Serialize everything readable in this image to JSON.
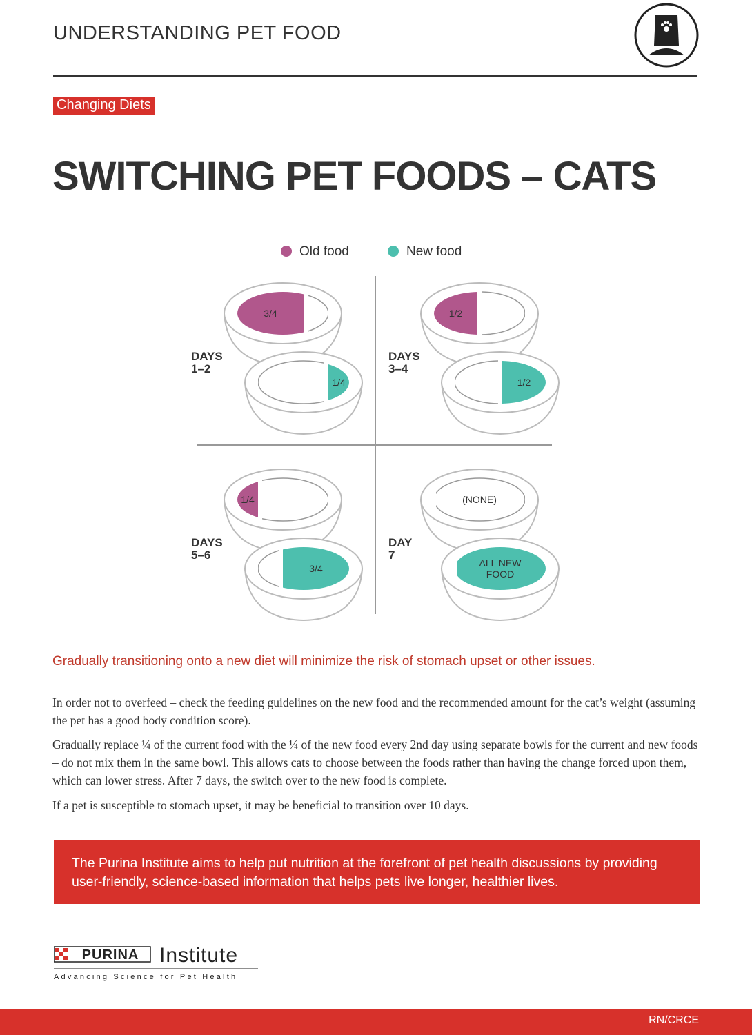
{
  "header": {
    "title": "UNDERSTANDING PET FOOD"
  },
  "tag": "Changing Diets",
  "title": "SWITCHING PET FOODS – CATS",
  "legend": [
    {
      "label": "Old food",
      "color": "#b1578c"
    },
    {
      "label": "New food",
      "color": "#4dbfae"
    }
  ],
  "panels": [
    {
      "label": "DAYS",
      "range": "1–2",
      "old": "3/4",
      "new": "1/4"
    },
    {
      "label": "DAYS",
      "range": "3–4",
      "old": "1/2",
      "new": "1/2"
    },
    {
      "label": "DAYS",
      "range": "5–6",
      "old": "1/4",
      "new": "3/4"
    },
    {
      "label": "DAY",
      "range": "7",
      "old": "(NONE)",
      "new": "ALL NEW FOOD"
    }
  ],
  "lead": "Gradually transitioning onto a new diet will minimize the risk of stomach upset or other issues.",
  "paragraphs": [
    "In order not to overfeed – check the feeding guidelines on the new food and the recommended amount for the cat’s weight (assuming the pet has a good body condition score).",
    "Gradually replace ¼ of the current food with the ¼ of the new food every 2nd day using separate bowls for the current and new foods – do not mix them in the same bowl. This allows cats to choose between the foods rather than having the change forced upon them, which can lower stress. After 7 days, the switch over to the new food is complete.",
    "If a pet is susceptible to stomach upset, it may be beneficial to transition over 10 days."
  ],
  "banner": "The Purina Institute aims to help put nutrition at the forefront of pet health discussions by providing user-friendly, science-based information that helps pets live longer, healthier lives.",
  "footer": {
    "brand": "PURINA",
    "institute": "Institute",
    "tagline": "Advancing Science for Pet Health",
    "code": "RN/CRCE"
  }
}
